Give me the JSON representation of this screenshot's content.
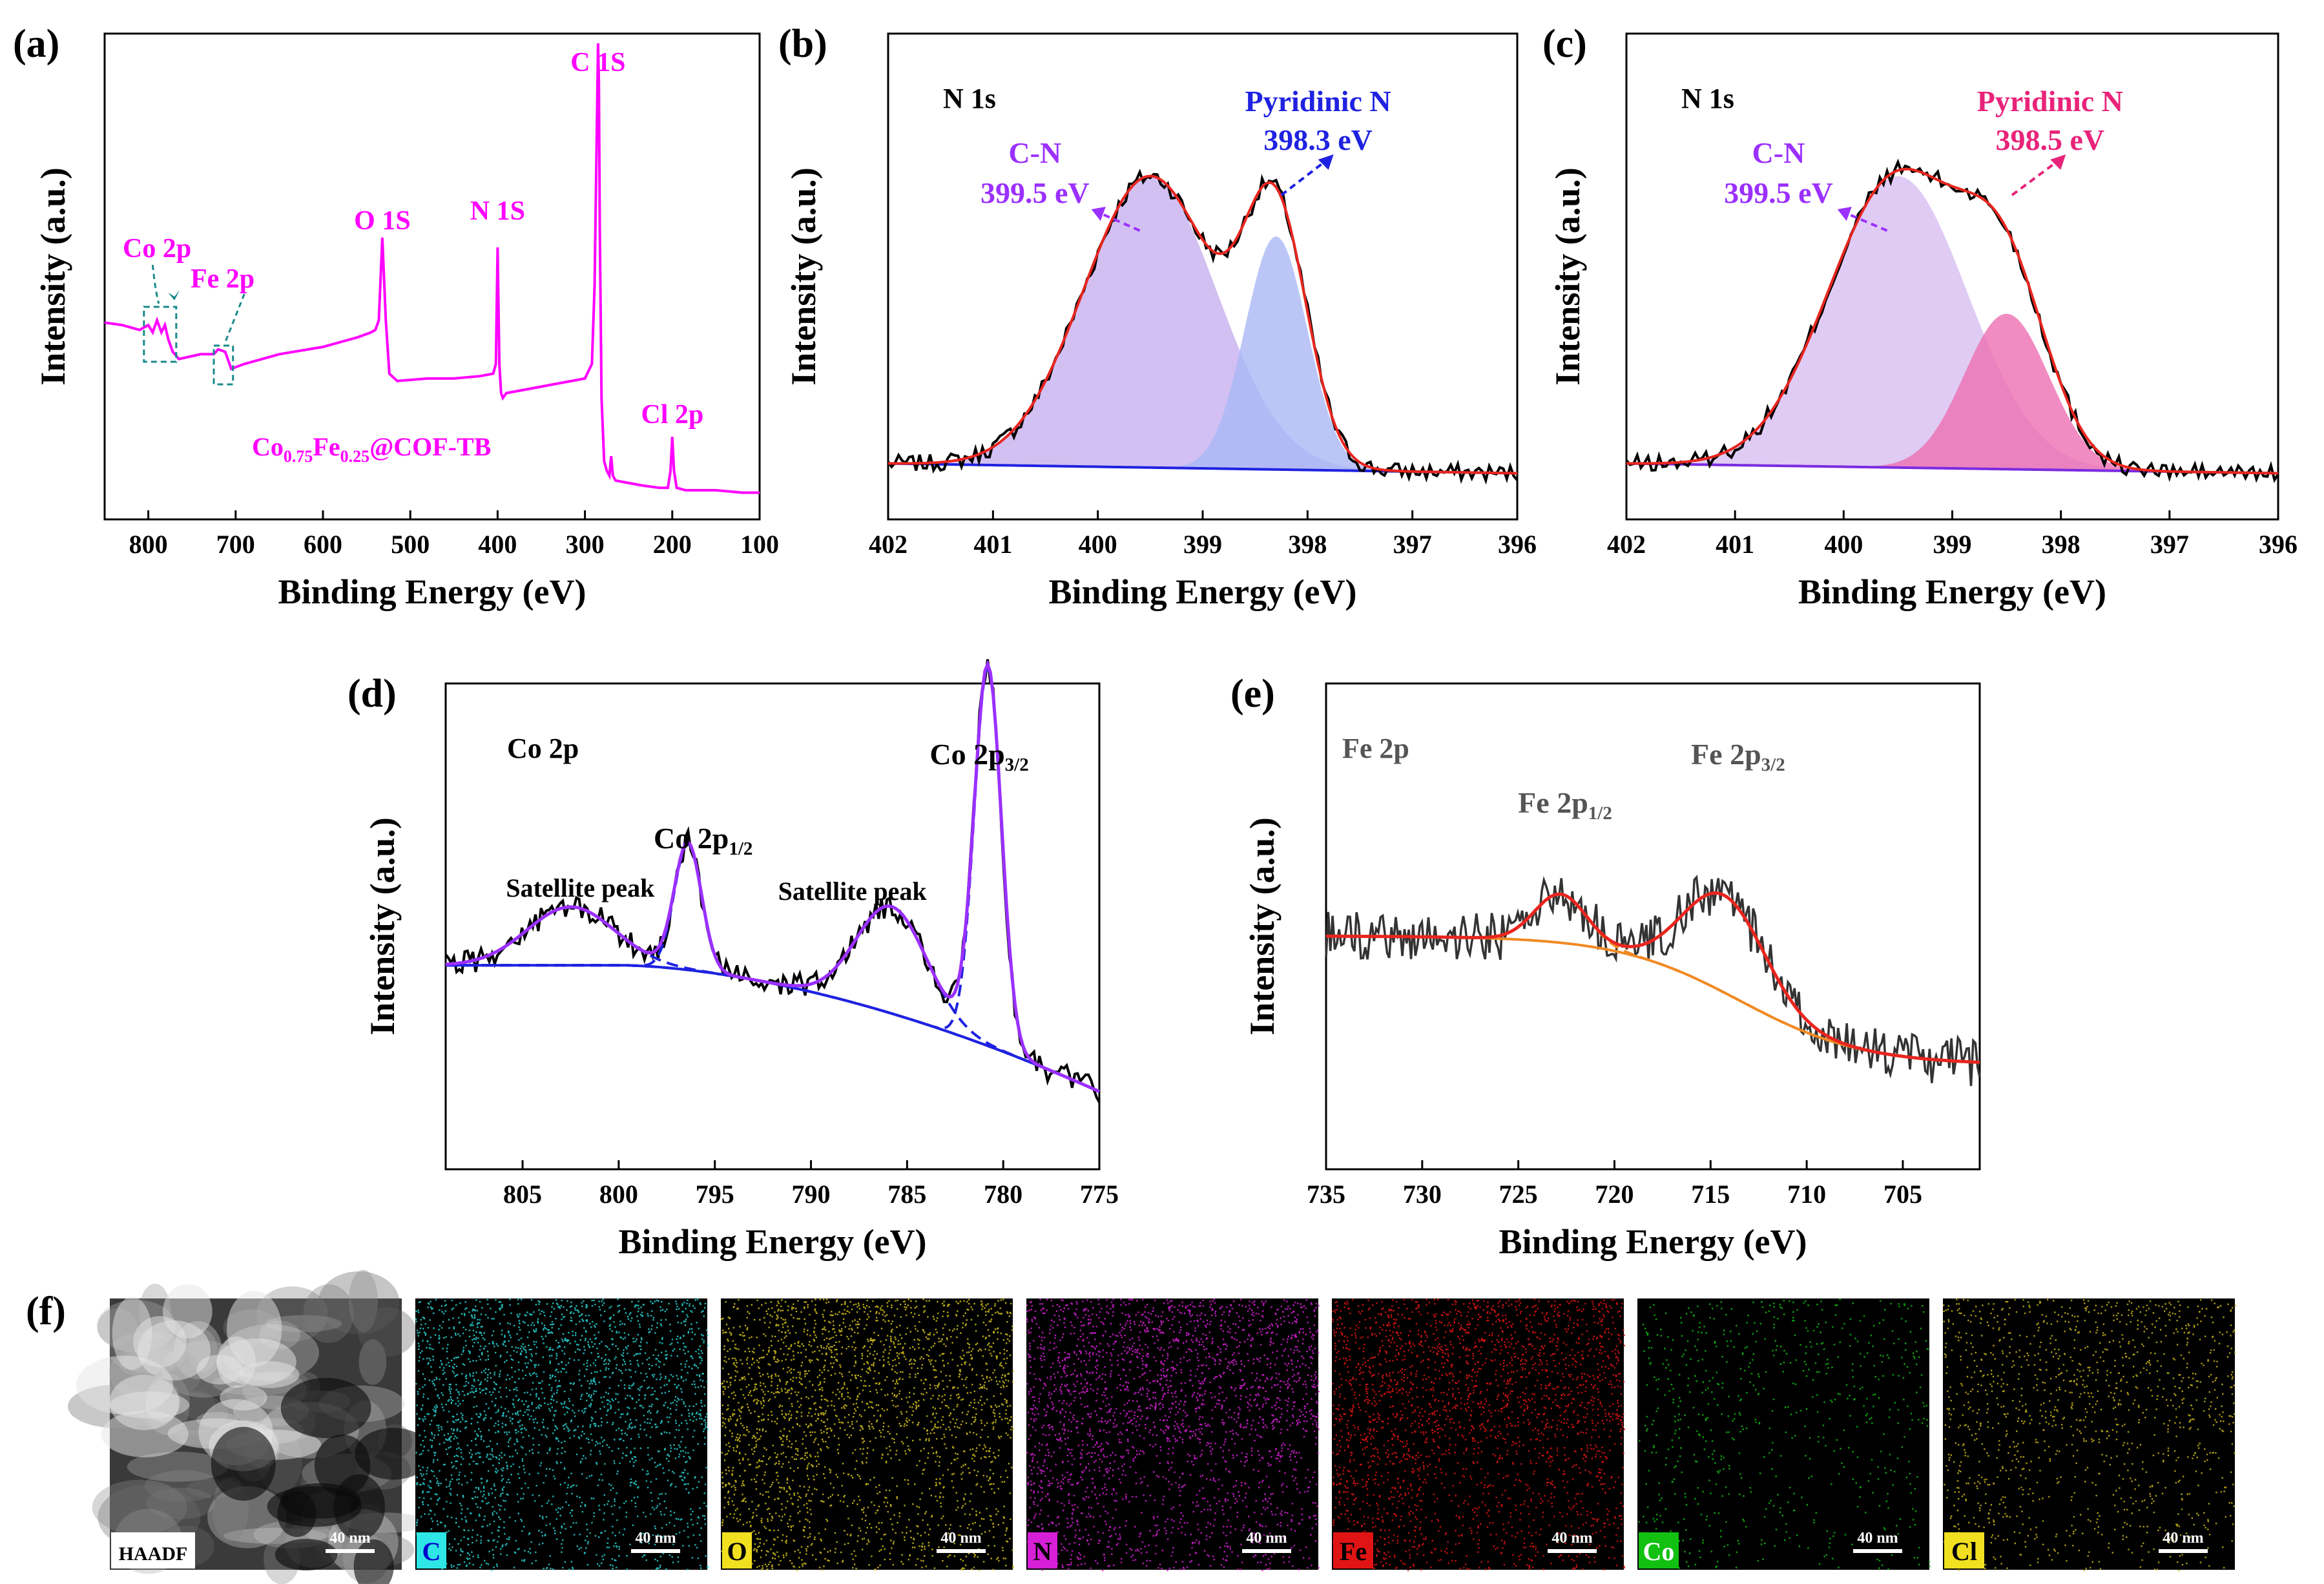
{
  "chart_data": [
    {
      "panel": "(a)",
      "type": "line",
      "title": "",
      "xlabel": "Binding Energy (eV)",
      "ylabel": "Intensity (a.u.)",
      "xlim": [
        850,
        100
      ],
      "x_ticks": [
        800,
        700,
        600,
        500,
        400,
        300,
        200,
        100
      ],
      "series": [
        {
          "name": "Co0.75Fe0.25@COF-TB survey",
          "color": "#ff00ff",
          "x": [
            850,
            830,
            810,
            800,
            795,
            790,
            785,
            781,
            777,
            772,
            765,
            740,
            725,
            720,
            712,
            705,
            690,
            650,
            600,
            560,
            545,
            540,
            536,
            532,
            528,
            524,
            515,
            480,
            450,
            420,
            405,
            402,
            400,
            398,
            396,
            394,
            390,
            360,
            330,
            300,
            292,
            289,
            286,
            285,
            284,
            283,
            281,
            278,
            275,
            272,
            270,
            268,
            265,
            250,
            235,
            215,
            205,
            202,
            200,
            198,
            195,
            185,
            150,
            120,
            100
          ],
          "y": [
            0.405,
            0.4,
            0.39,
            0.4,
            0.385,
            0.41,
            0.385,
            0.4,
            0.37,
            0.345,
            0.33,
            0.34,
            0.34,
            0.35,
            0.345,
            0.31,
            0.32,
            0.34,
            0.355,
            0.375,
            0.385,
            0.39,
            0.41,
            0.58,
            0.41,
            0.3,
            0.285,
            0.29,
            0.29,
            0.295,
            0.3,
            0.32,
            0.56,
            0.32,
            0.26,
            0.25,
            0.26,
            0.27,
            0.28,
            0.29,
            0.32,
            0.48,
            0.85,
            0.98,
            0.9,
            0.6,
            0.25,
            0.12,
            0.1,
            0.09,
            0.13,
            0.09,
            0.08,
            0.075,
            0.07,
            0.065,
            0.065,
            0.1,
            0.17,
            0.1,
            0.065,
            0.06,
            0.06,
            0.055,
            0.055
          ]
        }
      ],
      "annotations": [
        "C 1S",
        "O 1S",
        "N 1S",
        "Cl 2p",
        "Co 2p",
        "Fe 2p"
      ],
      "sample": {
        "pre": "Co",
        "sub1": "0.75",
        "mid": "Fe",
        "sub2": "0.25",
        "post": "@COF-TB"
      }
    },
    {
      "panel": "(b)",
      "type": "area",
      "title": "N 1s",
      "xlabel": "Binding Energy (eV)",
      "ylabel": "Intensity (a.u.)",
      "xlim": [
        402,
        396
      ],
      "x_ticks": [
        402,
        401,
        400,
        399,
        398,
        397,
        396
      ],
      "peaks": [
        {
          "name": "C-N",
          "position_ev": 399.5,
          "label": "399.5 eV",
          "color": "#9b30ff"
        },
        {
          "name": "Pyridinic N",
          "position_ev": 398.3,
          "label": "398.3 eV",
          "color": "#1f22e0"
        }
      ],
      "colors": {
        "envelope": "#e8261f",
        "raw": "#000000",
        "background": "#1f22e0",
        "peak1_fill": "#cbb5f0",
        "peak2_fill": "#aab8f5"
      }
    },
    {
      "panel": "(c)",
      "type": "area",
      "title": "N 1s",
      "xlabel": "Binding Energy (eV)",
      "ylabel": "Intensity (a.u.)",
      "xlim": [
        402,
        396
      ],
      "x_ticks": [
        402,
        401,
        400,
        399,
        398,
        397,
        396
      ],
      "peaks": [
        {
          "name": "C-N",
          "position_ev": 399.5,
          "label": "399.5 eV",
          "color": "#9b30ff"
        },
        {
          "name": "Pyridinic N",
          "position_ev": 398.5,
          "label": "398.5 eV",
          "color": "#e8237a"
        }
      ],
      "colors": {
        "envelope": "#e8261f",
        "raw": "#000000",
        "background": "#7b2be0",
        "peak1_fill": "#d9c2f2",
        "peak2_fill": "#ee6fb3"
      }
    },
    {
      "panel": "(d)",
      "type": "line",
      "title": "Co 2p",
      "xlabel": "Binding Energy (eV)",
      "ylabel": "Intensity (a.u.)",
      "xlim": [
        809,
        775
      ],
      "x_ticks": [
        805,
        800,
        795,
        790,
        785,
        780,
        775
      ],
      "annotations": [
        {
          "text": "Satellite peak",
          "at_ev": 802
        },
        {
          "pre": "Co 2p",
          "sub": "1/2",
          "at_ev": 796.5
        },
        {
          "text": "Satellite peak",
          "at_ev": 786
        },
        {
          "pre": "Co 2p",
          "sub": "3/2",
          "at_ev": 780.8
        }
      ],
      "colors": {
        "raw": "#000000",
        "envelope": "#9b30ff",
        "components": "#1f22e0"
      }
    },
    {
      "panel": "(e)",
      "type": "line",
      "title": "Fe 2p",
      "xlabel": "Binding Energy (eV)",
      "ylabel": "Intensity (a.u.)",
      "xlim": [
        735,
        701
      ],
      "x_ticks": [
        735,
        730,
        725,
        720,
        715,
        710,
        705
      ],
      "annotations": [
        {
          "pre": "Fe 2p",
          "sub": "1/2",
          "at_ev": 723
        },
        {
          "pre": "Fe 2p",
          "sub": "3/2",
          "at_ev": 714
        }
      ],
      "colors": {
        "raw": "#333333",
        "envelope": "#e8261f",
        "background": "#f08a24"
      }
    }
  ],
  "panel_f": {
    "label": "(f)",
    "scale": "40 nm",
    "maps": [
      {
        "label": "HAADF",
        "color": "#ffffff",
        "label_bg": "#ffffff",
        "label_fg": "#000000"
      },
      {
        "label": "C",
        "color": "#2ad4d4",
        "label_bg": "#2ee6e6",
        "label_fg": "#0000cc"
      },
      {
        "label": "O",
        "color": "#d4c21c",
        "label_bg": "#f0e020",
        "label_fg": "#000000"
      },
      {
        "label": "N",
        "color": "#d61fd6",
        "label_bg": "#d61fd6",
        "label_fg": "#000000"
      },
      {
        "label": "Fe",
        "color": "#e01414",
        "label_bg": "#e01414",
        "label_fg": "#000000"
      },
      {
        "label": "Co",
        "color": "#12c012",
        "label_bg": "#12c012",
        "label_fg": "#ffffff"
      },
      {
        "label": "Cl",
        "color": "#c8b41a",
        "label_bg": "#f0e020",
        "label_fg": "#000000"
      }
    ]
  }
}
